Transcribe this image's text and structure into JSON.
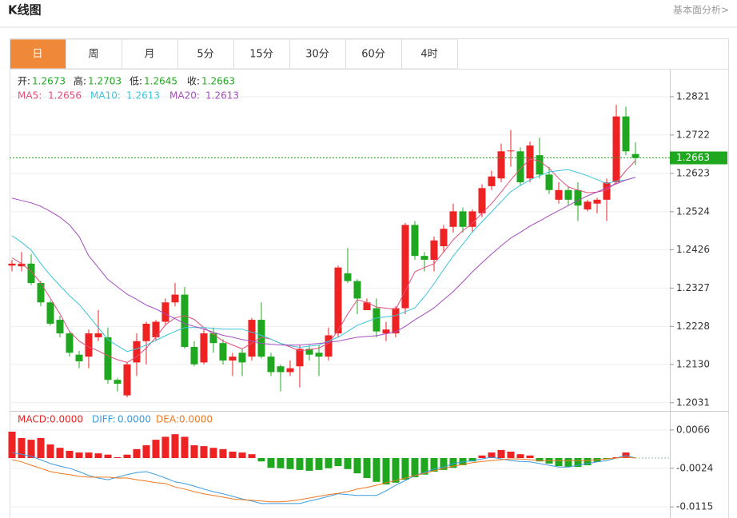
{
  "header": {
    "title": "K线图",
    "link": "基本面分析>"
  },
  "tabs": [
    "日",
    "周",
    "月",
    "5分",
    "15分",
    "30分",
    "60分",
    "4时"
  ],
  "chart_data": [
    {
      "type": "candlestick",
      "ohlc_labels": [
        "开:",
        "高:",
        "低:",
        "收:"
      ],
      "up_color": "#ee2222",
      "down_color": "#1fa81f",
      "open": [
        1.2385,
        1.2383,
        1.239,
        1.234,
        1.229,
        1.2245,
        1.221,
        1.2155,
        1.215,
        1.22,
        1.22,
        1.209,
        1.205,
        1.2135,
        1.219,
        1.22,
        1.224,
        1.229,
        1.231,
        1.2175,
        1.2135,
        1.221,
        1.2185,
        1.214,
        1.216,
        1.215,
        1.2245,
        1.215,
        1.2125,
        1.211,
        1.2125,
        1.217,
        1.216,
        1.215,
        1.221,
        1.2365,
        1.2345,
        1.227,
        1.2275,
        1.221,
        1.221,
        1.2275,
        1.249,
        1.241,
        1.24,
        1.2435,
        1.2485,
        1.2525,
        1.2485,
        1.252,
        1.259,
        1.261,
        1.268,
        1.268,
        1.261,
        1.267,
        1.262,
        1.2555,
        1.258,
        1.258,
        1.253,
        1.2545,
        1.2555,
        1.26,
        1.277,
        1.2673
      ],
      "high": [
        1.24,
        1.242,
        1.2415,
        1.2345,
        1.2295,
        1.2255,
        1.2215,
        1.2165,
        1.222,
        1.227,
        1.2225,
        1.2095,
        1.2135,
        1.221,
        1.224,
        1.2245,
        1.23,
        1.234,
        1.233,
        1.219,
        1.222,
        1.2225,
        1.2195,
        1.216,
        1.217,
        1.225,
        1.229,
        1.216,
        1.213,
        1.214,
        1.218,
        1.218,
        1.218,
        1.2225,
        1.2385,
        1.243,
        1.235,
        1.23,
        1.23,
        1.224,
        1.228,
        1.2495,
        1.25,
        1.242,
        1.246,
        1.249,
        1.2545,
        1.2535,
        1.253,
        1.2595,
        1.263,
        1.27,
        1.2735,
        1.269,
        1.2705,
        1.2715,
        1.264,
        1.26,
        1.259,
        1.26,
        1.2555,
        1.256,
        1.261,
        1.28,
        1.2795,
        1.2703
      ],
      "low": [
        1.237,
        1.237,
        1.2335,
        1.228,
        1.223,
        1.22,
        1.215,
        1.212,
        1.212,
        1.219,
        1.208,
        1.206,
        1.2045,
        1.21,
        1.213,
        1.219,
        1.223,
        1.228,
        1.217,
        1.2125,
        1.213,
        1.216,
        1.213,
        1.21,
        1.21,
        1.214,
        1.2145,
        1.21,
        1.206,
        1.21,
        1.207,
        1.214,
        1.21,
        1.214,
        1.22,
        1.234,
        1.226,
        1.227,
        1.22,
        1.219,
        1.22,
        1.226,
        1.24,
        1.237,
        1.237,
        1.242,
        1.247,
        1.247,
        1.247,
        1.251,
        1.258,
        1.26,
        1.264,
        1.259,
        1.26,
        1.261,
        1.257,
        1.2545,
        1.254,
        1.25,
        1.2525,
        1.252,
        1.25,
        1.2595,
        1.267,
        1.2645
      ],
      "close": [
        1.239,
        1.239,
        1.234,
        1.229,
        1.2235,
        1.221,
        1.216,
        1.2138,
        1.221,
        1.221,
        1.209,
        1.208,
        1.213,
        1.219,
        1.2235,
        1.224,
        1.229,
        1.231,
        1.2175,
        1.213,
        1.221,
        1.2185,
        1.214,
        1.215,
        1.2135,
        1.2245,
        1.215,
        1.211,
        1.211,
        1.212,
        1.217,
        1.2155,
        1.215,
        1.2205,
        1.238,
        1.2345,
        1.23,
        1.229,
        1.2215,
        1.222,
        1.2275,
        1.249,
        1.241,
        1.24,
        1.245,
        1.248,
        1.2525,
        1.2485,
        1.2525,
        1.2585,
        1.2615,
        1.268,
        1.2682,
        1.26,
        1.2695,
        1.262,
        1.258,
        1.258,
        1.2555,
        1.254,
        1.255,
        1.2555,
        1.26,
        1.277,
        1.268,
        1.2663
      ],
      "series": [
        {
          "name": "MA5:",
          "color": "#e0507a",
          "values": [
            1.2405,
            1.239,
            1.237,
            1.234,
            1.23,
            1.226,
            1.2215,
            1.219,
            1.2175,
            1.2165,
            1.2152,
            1.2142,
            1.2135,
            1.215,
            1.2172,
            1.22,
            1.2232,
            1.225,
            1.2256,
            1.2246,
            1.2225,
            1.2208,
            1.219,
            1.218,
            1.217,
            1.2185,
            1.22,
            1.2195,
            1.2184,
            1.2175,
            1.2165,
            1.2168,
            1.2172,
            1.2185,
            1.2218,
            1.226,
            1.2297,
            1.229,
            1.2278,
            1.2275,
            1.2272,
            1.232,
            1.2369,
            1.238,
            1.239,
            1.242,
            1.2452,
            1.2475,
            1.2494,
            1.252,
            1.2545,
            1.2575,
            1.2606,
            1.2635,
            1.266,
            1.2655,
            1.2636,
            1.261,
            1.2588,
            1.258,
            1.2573,
            1.2575,
            1.258,
            1.26,
            1.263,
            1.2656
          ]
        },
        {
          "name": "MA10:",
          "color": "#3cc4dc",
          "values": [
            1.2462,
            1.2445,
            1.2425,
            1.239,
            1.236,
            1.2333,
            1.2307,
            1.2285,
            1.2255,
            1.2225,
            1.2194,
            1.2178,
            1.2163,
            1.217,
            1.218,
            1.2192,
            1.2204,
            1.2215,
            1.2225,
            1.2225,
            1.2225,
            1.2223,
            1.2221,
            1.2221,
            1.2221,
            1.2213,
            1.2205,
            1.2195,
            1.2184,
            1.2178,
            1.2174,
            1.2177,
            1.218,
            1.219,
            1.22,
            1.2215,
            1.2231,
            1.224,
            1.225,
            1.2253,
            1.2256,
            1.2266,
            1.2276,
            1.2305,
            1.2338,
            1.2375,
            1.241,
            1.244,
            1.2472,
            1.2498,
            1.2524,
            1.255,
            1.2576,
            1.2592,
            1.2606,
            1.2617,
            1.2627,
            1.263,
            1.2633,
            1.2625,
            1.2617,
            1.2607,
            1.2597,
            1.2603,
            1.2606,
            1.2613
          ]
        },
        {
          "name": "MA20:",
          "color": "#a64dc0",
          "values": [
            1.2559,
            1.2553,
            1.2547,
            1.2538,
            1.2525,
            1.251,
            1.249,
            1.246,
            1.241,
            1.238,
            1.2349,
            1.233,
            1.2311,
            1.2298,
            1.2283,
            1.2273,
            1.226,
            1.2248,
            1.2235,
            1.2228,
            1.2221,
            1.2213,
            1.2205,
            1.22,
            1.2194,
            1.219,
            1.2184,
            1.2182,
            1.218,
            1.218,
            1.218,
            1.2182,
            1.2184,
            1.2187,
            1.219,
            1.2195,
            1.22,
            1.2202,
            1.2204,
            1.2209,
            1.2214,
            1.2228,
            1.2245,
            1.226,
            1.2276,
            1.2297,
            1.2318,
            1.2343,
            1.2369,
            1.2392,
            1.2415,
            1.2436,
            1.2456,
            1.2471,
            1.2487,
            1.25,
            1.2514,
            1.2527,
            1.254,
            1.2553,
            1.2565,
            1.2575,
            1.2586,
            1.2596,
            1.2606,
            1.2613
          ]
        }
      ],
      "ylim": [
        1.2012,
        1.2889
      ],
      "yticks": [
        1.2821,
        1.2722,
        1.2623,
        1.2524,
        1.2426,
        1.2327,
        1.2228,
        {
          "value": 1.213,
          "label": "1.2130"
        },
        1.2031
      ],
      "grid": true
    },
    {
      "type": "macd",
      "histogram": {
        "name": "MACD:",
        "value_label": "0.0000",
        "color": "#ee2222",
        "up_color": "#ee2222",
        "down_color": "#1fa81f",
        "values": [
          0.0062,
          0.0047,
          0.0043,
          0.0047,
          0.0032,
          0.0024,
          0.0017,
          0.0013,
          0.0013,
          0.0011,
          0.0008,
          0.0002,
          0.0008,
          0.0021,
          0.003,
          0.0043,
          0.005,
          0.0056,
          0.005,
          0.003,
          0.0028,
          0.0024,
          0.0021,
          0.0015,
          0.0013,
          0.0009,
          -0.0008,
          -0.0023,
          -0.0024,
          -0.0026,
          -0.0028,
          -0.003,
          -0.0028,
          -0.0024,
          -0.0019,
          -0.0026,
          -0.0036,
          -0.0047,
          -0.0056,
          -0.0062,
          -0.0058,
          -0.0051,
          -0.0045,
          -0.0039,
          -0.0032,
          -0.0028,
          -0.0023,
          -0.0017,
          -0.0008,
          0.0006,
          0.0013,
          0.0019,
          0.0015,
          0.0009,
          0.0006,
          -0.0008,
          -0.0013,
          -0.0019,
          -0.0021,
          -0.0021,
          -0.0017,
          -0.0009,
          -0.0002,
          0.0002,
          0.0013,
          0
        ]
      },
      "series": [
        {
          "name": "DIFF:",
          "value_label": "0.0000",
          "color": "#3c9be0",
          "values": [
            0.0013,
            0.0009,
            0.0004,
            -0.0004,
            -0.0013,
            -0.0019,
            -0.0024,
            -0.0032,
            -0.0041,
            -0.0047,
            -0.0051,
            -0.0045,
            -0.0039,
            -0.0034,
            -0.0032,
            -0.0039,
            -0.0047,
            -0.0056,
            -0.006,
            -0.0066,
            -0.0073,
            -0.0079,
            -0.0084,
            -0.009,
            -0.0096,
            -0.0101,
            -0.0107,
            -0.0107,
            -0.0107,
            -0.0107,
            -0.0107,
            -0.0101,
            -0.0096,
            -0.009,
            -0.0084,
            -0.0086,
            -0.0088,
            -0.0088,
            -0.0088,
            -0.0077,
            -0.0064,
            -0.0053,
            -0.0041,
            -0.0034,
            -0.0026,
            -0.0021,
            -0.0013,
            -0.0009,
            -0.0006,
            -0.0002,
            0.0002,
            -0.0002,
            -0.0006,
            -0.0008,
            -0.0009,
            -0.0013,
            -0.0017,
            -0.0021,
            -0.0021,
            -0.0017,
            -0.0013,
            -0.0009,
            -0.0006,
            0,
            0.0006,
            0
          ]
        },
        {
          "name": "DEA:",
          "value_label": "0.0000",
          "color": "#f07820",
          "values": [
            -0.0004,
            -0.0009,
            -0.0017,
            -0.0024,
            -0.0032,
            -0.0036,
            -0.0039,
            -0.0043,
            -0.0045,
            -0.0045,
            -0.0045,
            -0.0047,
            -0.0047,
            -0.0051,
            -0.0054,
            -0.0058,
            -0.006,
            -0.0068,
            -0.0073,
            -0.0079,
            -0.0084,
            -0.0088,
            -0.0092,
            -0.0096,
            -0.0098,
            -0.0099,
            -0.0101,
            -0.0103,
            -0.0103,
            -0.0101,
            -0.0098,
            -0.0094,
            -0.009,
            -0.0086,
            -0.0083,
            -0.0079,
            -0.0073,
            -0.0069,
            -0.0064,
            -0.0058,
            -0.0053,
            -0.0047,
            -0.0041,
            -0.0036,
            -0.003,
            -0.0024,
            -0.0019,
            -0.0015,
            -0.0011,
            -0.0008,
            -0.0006,
            -0.0004,
            -0.0002,
            -0.0002,
            -0.0004,
            -0.0006,
            -0.0006,
            -0.0006,
            -0.0006,
            -0.0006,
            -0.0006,
            -0.0004,
            -0.0002,
            0,
            0.0002,
            0
          ]
        }
      ],
      "ylim": [
        -0.0141,
        0.0109
      ],
      "yticks": [
        0.0066,
        -0.0024,
        -0.0115
      ]
    }
  ]
}
